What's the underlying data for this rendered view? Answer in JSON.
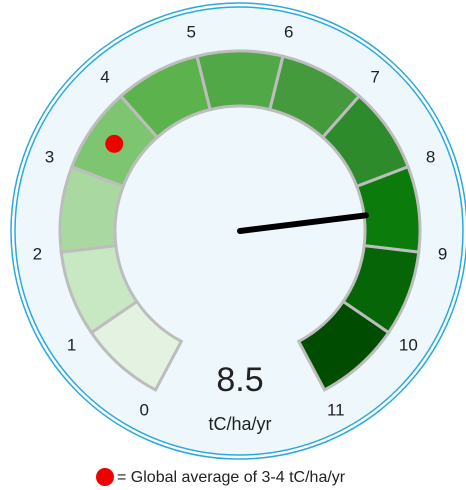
{
  "chart_data": {
    "type": "gauge",
    "lim": [
      0,
      11
    ],
    "ticks": [
      0,
      1,
      2,
      3,
      4,
      5,
      6,
      7,
      8,
      9,
      10,
      11
    ],
    "band_colors": [
      "#e4f3e1",
      "#c8e7c3",
      "#a9d9a1",
      "#7dc570",
      "#5cb24d",
      "#50a847",
      "#459a3e",
      "#2e8b2b",
      "#0b7b0b",
      "#066506",
      "#004c00"
    ],
    "value": 8.5,
    "value_label": "8.5",
    "unit": "tC/ha/yr",
    "marker": 3.5,
    "marker_color": "#ee0000",
    "legend": "= Global average of 3-4 tC/ha/yr"
  }
}
